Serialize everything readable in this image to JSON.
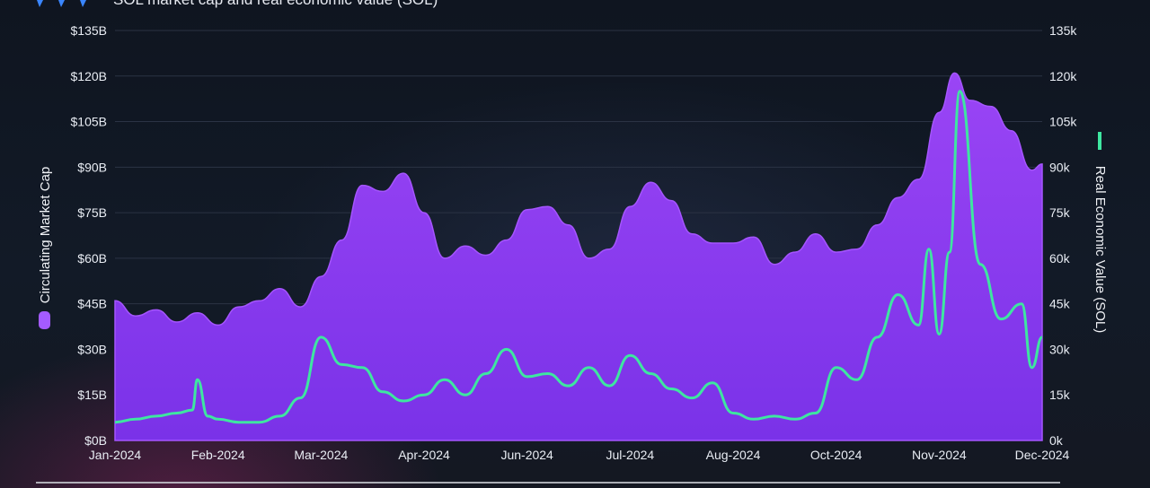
{
  "chart_data": {
    "type": "area",
    "title": "SOL market cap and real economic value (SOL)",
    "x_ticks": [
      "Jan-2024",
      "Feb-2024",
      "Mar-2024",
      "Apr-2024",
      "Jun-2024",
      "Jul-2024",
      "Aug-2024",
      "Oct-2024",
      "Nov-2024",
      "Dec-2024"
    ],
    "y_left": {
      "label": "Circulating Market Cap",
      "range": [
        0,
        135
      ],
      "unit": "B USD",
      "tick_labels": [
        "$0B",
        "$15B",
        "$30B",
        "$45B",
        "$60B",
        "$75B",
        "$90B",
        "$105B",
        "$120B",
        "$135B"
      ]
    },
    "y_right": {
      "label": "Real Economic Value (SOL)",
      "range": [
        0,
        135
      ],
      "unit": "k SOL",
      "tick_labels": [
        "0k",
        "15k",
        "30k",
        "45k",
        "60k",
        "75k",
        "90k",
        "105k",
        "120k",
        "135k"
      ]
    },
    "series": [
      {
        "name": "Circulating Market Cap",
        "axis": "left",
        "type": "area",
        "color": "#8a3df0",
        "x": [
          0,
          0.2,
          0.4,
          0.6,
          0.8,
          1.0,
          1.2,
          1.4,
          1.6,
          1.8,
          2.0,
          2.2,
          2.4,
          2.6,
          2.8,
          3.0,
          3.2,
          3.4,
          3.6,
          3.8,
          4.0,
          4.2,
          4.4,
          4.6,
          4.8,
          5.0,
          5.2,
          5.4,
          5.6,
          5.8,
          6.0,
          6.2,
          6.4,
          6.6,
          6.8,
          7.0,
          7.2,
          7.4,
          7.6,
          7.8,
          8.0,
          8.15,
          8.3,
          8.5,
          8.7,
          8.9,
          9.0
        ],
        "values": [
          46,
          41,
          43,
          39,
          42,
          38,
          44,
          46,
          50,
          44,
          54,
          66,
          84,
          82,
          88,
          75,
          60,
          64,
          61,
          66,
          76,
          77,
          71,
          60,
          63,
          77,
          85,
          79,
          68,
          65,
          65,
          67,
          58,
          62,
          68,
          62,
          63,
          71,
          80,
          86,
          108,
          121,
          112,
          110,
          102,
          89,
          91
        ]
      },
      {
        "name": "Real Economic Value (SOL)",
        "axis": "right",
        "type": "line",
        "color": "#3ee6a0",
        "x": [
          0,
          0.2,
          0.4,
          0.6,
          0.75,
          0.8,
          0.9,
          1.0,
          1.2,
          1.4,
          1.6,
          1.8,
          2.0,
          2.2,
          2.4,
          2.6,
          2.8,
          3.0,
          3.2,
          3.4,
          3.6,
          3.8,
          4.0,
          4.2,
          4.4,
          4.6,
          4.8,
          5.0,
          5.2,
          5.4,
          5.6,
          5.8,
          6.0,
          6.2,
          6.4,
          6.6,
          6.8,
          7.0,
          7.2,
          7.4,
          7.6,
          7.8,
          7.9,
          8.0,
          8.1,
          8.2,
          8.4,
          8.6,
          8.8,
          8.9,
          9.0
        ],
        "values": [
          6,
          7,
          8,
          9,
          10,
          20,
          8,
          7,
          6,
          6,
          8,
          14,
          34,
          25,
          24,
          16,
          13,
          15,
          20,
          15,
          22,
          30,
          21,
          22,
          18,
          24,
          18,
          28,
          22,
          17,
          14,
          19,
          9,
          7,
          8,
          7,
          9,
          24,
          20,
          34,
          48,
          38,
          63,
          35,
          62,
          115,
          58,
          40,
          45,
          24,
          34
        ]
      }
    ]
  }
}
